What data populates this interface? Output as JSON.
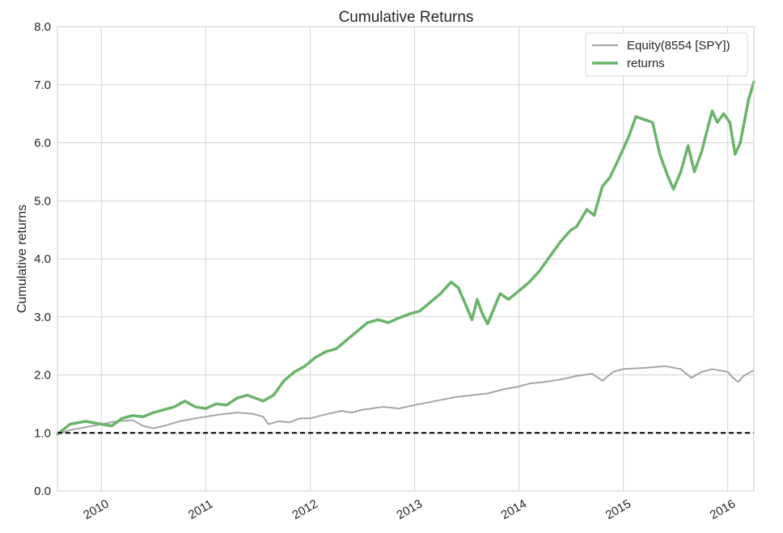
{
  "chart_data": {
    "type": "line",
    "title": "Cumulative Returns",
    "xlabel": "",
    "ylabel": "Cumulative returns",
    "xlim": [
      2009.58,
      2016.25
    ],
    "ylim": [
      0.0,
      8.0
    ],
    "x_tick_labels": [
      "2010",
      "2011",
      "2012",
      "2013",
      "2014",
      "2015",
      "2016"
    ],
    "x_tick_values": [
      2010,
      2011,
      2012,
      2013,
      2014,
      2015,
      2016
    ],
    "y_tick_labels": [
      "0.0",
      "1.0",
      "2.0",
      "3.0",
      "4.0",
      "5.0",
      "6.0",
      "7.0",
      "8.0"
    ],
    "y_tick_values": [
      0,
      1,
      2,
      3,
      4,
      5,
      6,
      7,
      8
    ],
    "grid": true,
    "legend_position": "top-right",
    "reference_line": {
      "y": 1.0,
      "style": "dashed",
      "color": "#000000"
    },
    "series": [
      {
        "name": "Equity(8554 [SPY])",
        "color": "#a6a6a6",
        "x": [
          2009.58,
          2009.7,
          2009.85,
          2010.0,
          2010.15,
          2010.3,
          2010.4,
          2010.5,
          2010.6,
          2010.75,
          2010.9,
          2011.0,
          2011.15,
          2011.3,
          2011.45,
          2011.55,
          2011.6,
          2011.7,
          2011.8,
          2011.9,
          2012.0,
          2012.15,
          2012.3,
          2012.4,
          2012.5,
          2012.7,
          2012.85,
          2013.0,
          2013.2,
          2013.4,
          2013.55,
          2013.7,
          2013.85,
          2014.0,
          2014.1,
          2014.25,
          2014.4,
          2014.55,
          2014.7,
          2014.8,
          2014.9,
          2015.0,
          2015.2,
          2015.4,
          2015.55,
          2015.65,
          2015.75,
          2015.85,
          2016.0,
          2016.05,
          2016.1,
          2016.15,
          2016.25
        ],
        "y": [
          0.98,
          1.05,
          1.1,
          1.15,
          1.2,
          1.22,
          1.12,
          1.08,
          1.12,
          1.2,
          1.25,
          1.28,
          1.32,
          1.35,
          1.33,
          1.28,
          1.15,
          1.2,
          1.18,
          1.25,
          1.25,
          1.32,
          1.38,
          1.35,
          1.4,
          1.45,
          1.42,
          1.48,
          1.55,
          1.62,
          1.65,
          1.68,
          1.75,
          1.8,
          1.85,
          1.88,
          1.92,
          1.98,
          2.02,
          1.9,
          2.05,
          2.1,
          2.12,
          2.15,
          2.1,
          1.95,
          2.05,
          2.1,
          2.05,
          1.95,
          1.88,
          1.98,
          2.08
        ]
      },
      {
        "name": "returns",
        "color": "#6ab46a",
        "x": [
          2009.58,
          2009.7,
          2009.85,
          2010.0,
          2010.1,
          2010.2,
          2010.3,
          2010.4,
          2010.5,
          2010.6,
          2010.7,
          2010.8,
          2010.9,
          2011.0,
          2011.1,
          2011.2,
          2011.3,
          2011.4,
          2011.55,
          2011.65,
          2011.75,
          2011.85,
          2011.95,
          2012.05,
          2012.15,
          2012.25,
          2012.35,
          2012.45,
          2012.55,
          2012.65,
          2012.75,
          2012.85,
          2012.95,
          2013.05,
          2013.15,
          2013.25,
          2013.35,
          2013.42,
          2013.48,
          2013.55,
          2013.6,
          2013.65,
          2013.7,
          2013.75,
          2013.82,
          2013.9,
          2014.0,
          2014.1,
          2014.2,
          2014.3,
          2014.4,
          2014.5,
          2014.55,
          2014.65,
          2014.72,
          2014.8,
          2014.87,
          2014.95,
          2015.05,
          2015.12,
          2015.2,
          2015.28,
          2015.35,
          2015.42,
          2015.48,
          2015.55,
          2015.62,
          2015.68,
          2015.75,
          2015.85,
          2015.9,
          2015.96,
          2016.02,
          2016.07,
          2016.12,
          2016.2,
          2016.25
        ],
        "y": [
          0.98,
          1.15,
          1.2,
          1.15,
          1.12,
          1.25,
          1.3,
          1.28,
          1.35,
          1.4,
          1.45,
          1.55,
          1.45,
          1.42,
          1.5,
          1.48,
          1.6,
          1.65,
          1.55,
          1.65,
          1.9,
          2.05,
          2.15,
          2.3,
          2.4,
          2.45,
          2.6,
          2.75,
          2.9,
          2.95,
          2.9,
          2.98,
          3.05,
          3.1,
          3.25,
          3.4,
          3.6,
          3.5,
          3.25,
          2.95,
          3.3,
          3.05,
          2.88,
          3.1,
          3.4,
          3.3,
          3.45,
          3.6,
          3.8,
          4.05,
          4.3,
          4.5,
          4.55,
          4.85,
          4.75,
          5.25,
          5.4,
          5.7,
          6.1,
          6.45,
          6.4,
          6.35,
          5.8,
          5.45,
          5.2,
          5.5,
          5.95,
          5.5,
          5.85,
          6.55,
          6.35,
          6.5,
          6.35,
          5.8,
          6.0,
          6.75,
          7.05
        ]
      }
    ]
  }
}
